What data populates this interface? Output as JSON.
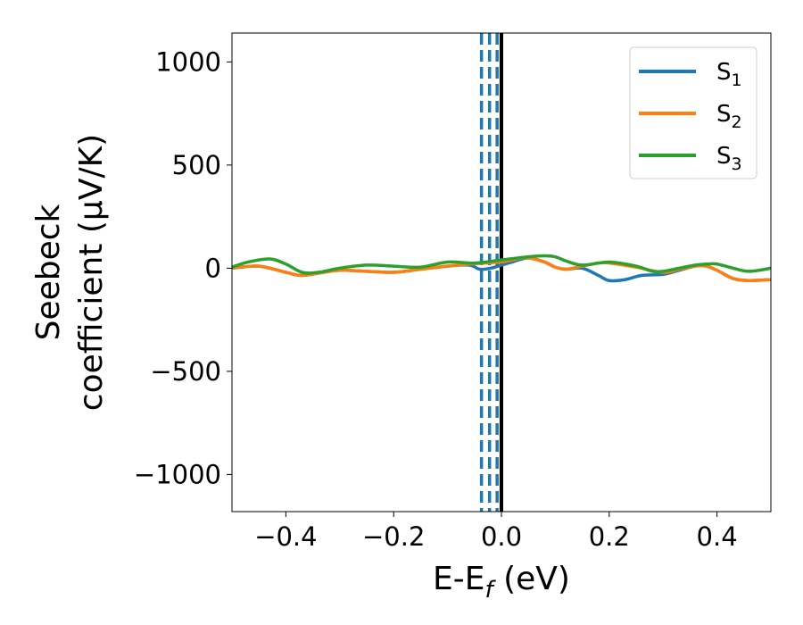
{
  "chart_data": {
    "type": "line",
    "xlabel": "E-E",
    "xlabel_sub": "f",
    "xlabel_unit": " (eV)",
    "ylabel_line1": "Seebeck",
    "ylabel_line2": "coefficient  (μV/K)",
    "xlim": [
      -0.5,
      0.5
    ],
    "ylim": [
      -1180,
      1140
    ],
    "x_ticks": [
      -0.4,
      -0.2,
      0.0,
      0.2,
      0.4
    ],
    "x_tick_labels": [
      "−0.4",
      "−0.2",
      "0.0",
      "0.2",
      "0.4"
    ],
    "y_ticks": [
      -1000,
      -500,
      0,
      500,
      1000
    ],
    "y_tick_labels": [
      "−1000",
      "−500",
      "0",
      "500",
      "1000"
    ],
    "grid": false,
    "legend_position": "top-right",
    "series": [
      {
        "name": "S",
        "name_sub": "1",
        "color": "#1f77b4",
        "x": [
          -0.5,
          -0.45,
          -0.4,
          -0.37,
          -0.33,
          -0.3,
          -0.25,
          -0.2,
          -0.15,
          -0.1,
          -0.06,
          -0.04,
          -0.02,
          0.0,
          0.02,
          0.05,
          0.08,
          0.1,
          0.12,
          0.15,
          0.18,
          0.2,
          0.23,
          0.26,
          0.3,
          0.33,
          0.36,
          0.38,
          0.4,
          0.43,
          0.46,
          0.5
        ],
        "y": [
          0,
          10,
          -20,
          -35,
          -20,
          -10,
          -15,
          -20,
          -5,
          10,
          15,
          -5,
          0,
          15,
          30,
          50,
          30,
          5,
          -5,
          0,
          -35,
          -60,
          -55,
          -35,
          -30,
          -10,
          10,
          10,
          -10,
          -50,
          -60,
          -55
        ]
      },
      {
        "name": "S",
        "name_sub": "2",
        "color": "#ff7f0e",
        "x": [
          -0.5,
          -0.45,
          -0.4,
          -0.37,
          -0.33,
          -0.3,
          -0.25,
          -0.2,
          -0.15,
          -0.1,
          -0.06,
          -0.03,
          0.0,
          0.02,
          0.04,
          0.06,
          0.08,
          0.1,
          0.12,
          0.15,
          0.18,
          0.2,
          0.25,
          0.3,
          0.33,
          0.36,
          0.38,
          0.4,
          0.43,
          0.46,
          0.5
        ],
        "y": [
          0,
          10,
          -20,
          -35,
          -20,
          -10,
          -15,
          -20,
          -5,
          10,
          20,
          25,
          30,
          40,
          50,
          45,
          30,
          5,
          -5,
          10,
          25,
          25,
          5,
          -20,
          -5,
          10,
          10,
          -10,
          -50,
          -60,
          -55
        ]
      },
      {
        "name": "S",
        "name_sub": "3",
        "color": "#2ca02c",
        "x": [
          -0.5,
          -0.47,
          -0.43,
          -0.4,
          -0.37,
          -0.34,
          -0.3,
          -0.25,
          -0.2,
          -0.15,
          -0.1,
          -0.05,
          0.0,
          0.05,
          0.08,
          0.1,
          0.12,
          0.15,
          0.2,
          0.25,
          0.28,
          0.3,
          0.33,
          0.36,
          0.38,
          0.4,
          0.43,
          0.46,
          0.5
        ],
        "y": [
          5,
          30,
          45,
          20,
          -20,
          -20,
          0,
          15,
          10,
          5,
          30,
          25,
          40,
          55,
          60,
          55,
          35,
          15,
          30,
          10,
          -15,
          -15,
          0,
          15,
          20,
          20,
          0,
          -15,
          0
        ]
      }
    ],
    "vertical_lines": [
      {
        "x": -0.037,
        "style": "dashed",
        "color": "#1f77b4"
      },
      {
        "x": -0.022,
        "style": "dashed",
        "color": "#1f77b4"
      },
      {
        "x": -0.008,
        "style": "dashed",
        "color": "#1f77b4"
      },
      {
        "x": 0.0,
        "style": "solid",
        "color": "#000000"
      }
    ]
  }
}
